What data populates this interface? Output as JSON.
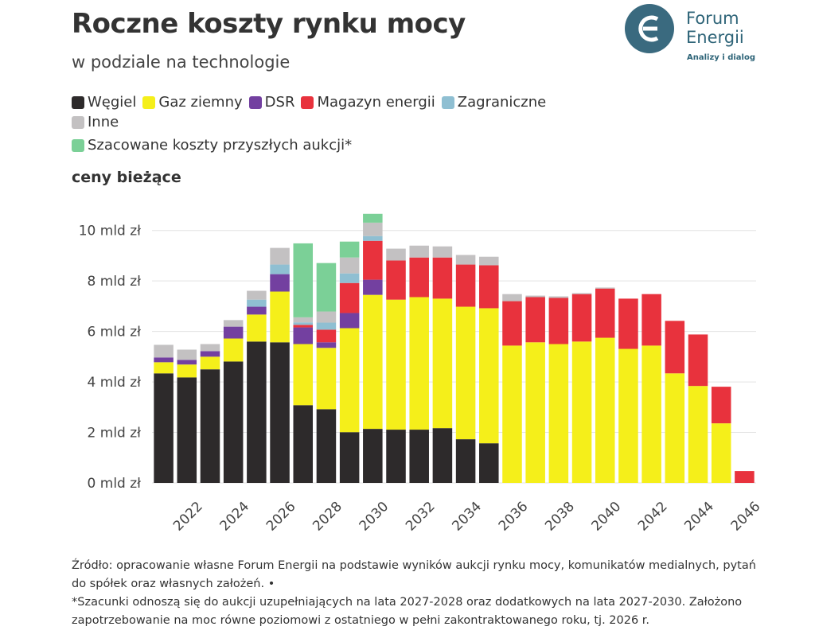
{
  "header": {
    "title": "Roczne koszty rynku mocy",
    "subtitle": "w podziale na technologie",
    "logo_name_1": "Forum",
    "logo_name_2": "Energii",
    "logo_tagline": "Analizy i dialog"
  },
  "chart_data": {
    "type": "stacked-bar",
    "y_caption": "ceny bieżące",
    "categories": [
      null,
      "2022",
      null,
      "2024",
      null,
      "2026",
      null,
      "2028",
      null,
      "2030",
      null,
      "2032",
      null,
      "2034",
      null,
      "2036",
      null,
      "2038",
      null,
      "2040",
      null,
      "2042",
      null,
      "2044",
      null,
      "2046"
    ],
    "series": [
      {
        "name": "Węgiel",
        "color": "#2d2a2b",
        "values": [
          4.34,
          4.18,
          4.5,
          4.81,
          5.6,
          5.57,
          3.08,
          2.92,
          2.01,
          2.14,
          2.11,
          2.11,
          2.17,
          1.73,
          1.57,
          0,
          0,
          0,
          0,
          0,
          0,
          0,
          0,
          0,
          0,
          0
        ]
      },
      {
        "name": "Gaz ziemny",
        "color": "#f5ef1a",
        "values": [
          0.44,
          0.51,
          0.5,
          0.91,
          1.07,
          2.01,
          2.42,
          2.43,
          4.12,
          5.31,
          5.15,
          5.25,
          5.13,
          5.25,
          5.35,
          5.44,
          5.57,
          5.5,
          5.6,
          5.75,
          5.31,
          5.44,
          4.34,
          3.84,
          2.36,
          0
        ]
      },
      {
        "name": "DSR",
        "color": "#7340a0",
        "values": [
          0.19,
          0.18,
          0.22,
          0.47,
          0.31,
          0.69,
          0.66,
          0.22,
          0.6,
          0.6,
          0,
          0,
          0,
          0,
          0,
          0,
          0,
          0,
          0,
          0,
          0,
          0,
          0,
          0,
          0,
          0
        ]
      },
      {
        "name": "Magazyn energii",
        "color": "#e8323d",
        "values": [
          0,
          0,
          0,
          0,
          0,
          0,
          0.1,
          0.5,
          1.19,
          1.54,
          1.55,
          1.57,
          1.63,
          1.67,
          1.7,
          1.76,
          1.79,
          1.83,
          1.88,
          1.95,
          1.99,
          2.04,
          2.08,
          2.04,
          1.45,
          0.47
        ]
      },
      {
        "name": "Zagraniczne",
        "color": "#8fbfd2",
        "values": [
          0,
          0,
          0,
          0,
          0.28,
          0.38,
          0.1,
          0.28,
          0.38,
          0.19,
          0,
          0,
          0,
          0,
          0,
          0,
          0,
          0,
          0,
          0,
          0,
          0,
          0,
          0,
          0,
          0
        ]
      },
      {
        "name": "Inne",
        "color": "#c3c1c2",
        "values": [
          0.5,
          0.41,
          0.28,
          0.26,
          0.35,
          0.66,
          0.2,
          0.44,
          0.63,
          0.53,
          0.47,
          0.47,
          0.44,
          0.38,
          0.34,
          0.28,
          0.06,
          0.06,
          0.04,
          0.04,
          0,
          0,
          0,
          0,
          0,
          0
        ]
      },
      {
        "name": "Szacowane koszty przyszłych aukcji*",
        "color": "#7bd097",
        "values": [
          0,
          0,
          0,
          0,
          0,
          0,
          2.93,
          1.92,
          0.63,
          0.35,
          0,
          0,
          0,
          0,
          0,
          0,
          0,
          0,
          0,
          0,
          0,
          0,
          0,
          0,
          0,
          0
        ]
      }
    ],
    "ylim": [
      0,
      11
    ],
    "yticks": [
      {
        "value": 0,
        "label": "0 mld zł"
      },
      {
        "value": 2,
        "label": "2 mld zł"
      },
      {
        "value": 4,
        "label": "4 mld zł"
      },
      {
        "value": 6,
        "label": "6 mld zł"
      },
      {
        "value": 8,
        "label": "8 mld zł"
      },
      {
        "value": 10,
        "label": "10 mld zł"
      }
    ],
    "grid": true
  },
  "footer": {
    "source": "Źródło: opracowanie własne Forum Energii na podstawie wyników aukcji rynku mocy, komunikatów medialnych, pytań do spółek oraz własnych założeń. •",
    "note": "*Szacunki odnoszą się do aukcji uzupełniających na lata 2027-2028 oraz dodatkowych na lata 2027-2030. Założono zapotrzebowanie na moc równe poziomowi z ostatniego w pełni zakontraktowanego roku, tj. 2026 r."
  }
}
